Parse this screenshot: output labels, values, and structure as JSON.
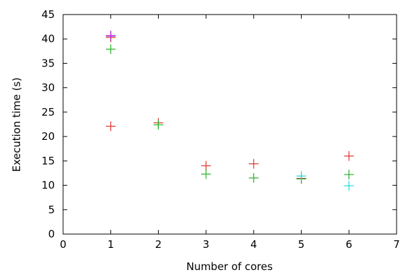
{
  "chart_data": {
    "type": "scatter",
    "title": "",
    "xlabel": "Number of cores",
    "ylabel": "Execution time (s)",
    "xlim": [
      0,
      7
    ],
    "ylim": [
      0,
      45
    ],
    "xticks": [
      0,
      1,
      2,
      3,
      4,
      5,
      6,
      7
    ],
    "yticks": [
      0,
      5,
      10,
      15,
      20,
      25,
      30,
      35,
      40,
      45
    ],
    "grid": false,
    "legend": "none",
    "marker": "plus",
    "series": [
      {
        "name": "series-red",
        "color": "#e0302a",
        "points": [
          [
            1,
            40.3
          ],
          [
            1,
            22.1
          ],
          [
            2,
            22.8
          ],
          [
            3,
            14.0
          ],
          [
            4,
            14.4
          ],
          [
            5,
            11.4
          ],
          [
            6,
            16.0
          ]
        ]
      },
      {
        "name": "series-green",
        "color": "#22b022",
        "points": [
          [
            1,
            37.9
          ],
          [
            2,
            22.4
          ],
          [
            3,
            12.3
          ],
          [
            4,
            11.5
          ],
          [
            5,
            11.3
          ],
          [
            6,
            12.2
          ]
        ]
      },
      {
        "name": "series-blue",
        "color": "#3a3adf",
        "points": [
          [
            1,
            40.6
          ]
        ]
      },
      {
        "name": "series-magenta",
        "color": "#d030d0",
        "points": [
          [
            1,
            40.7
          ]
        ]
      },
      {
        "name": "series-cyan",
        "color": "#20d8e0",
        "points": [
          [
            5,
            11.9
          ],
          [
            6,
            9.9
          ]
        ]
      }
    ]
  }
}
